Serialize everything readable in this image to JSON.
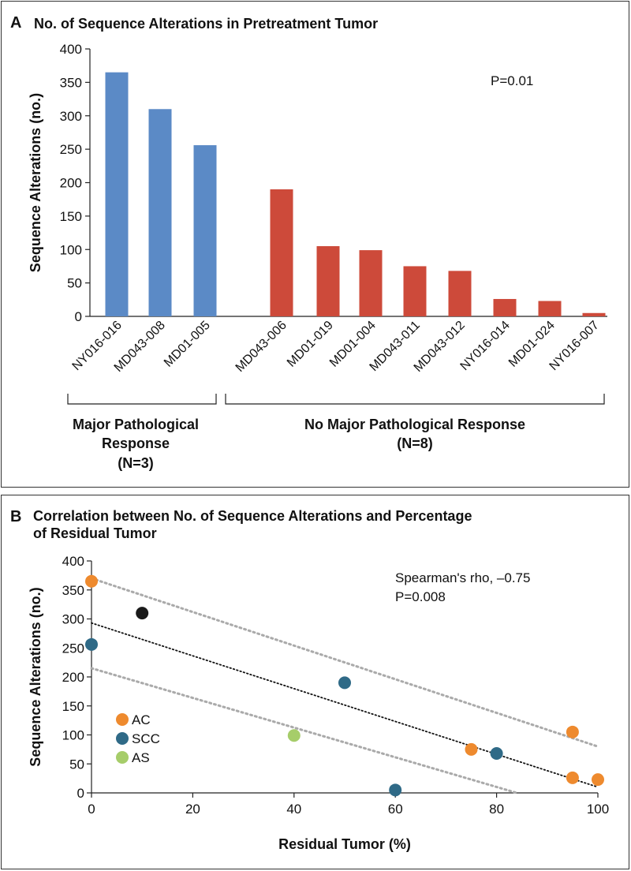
{
  "panel_a": {
    "letter": "A",
    "title": "No. of Sequence Alterations in Pretreatment Tumor",
    "p_value": "P=0.01",
    "groups": [
      {
        "label_lines": [
          "Major Pathological",
          "Response",
          "(N=3)"
        ]
      },
      {
        "label_lines": [
          "No Major Pathological Response",
          "(N=8)"
        ]
      }
    ]
  },
  "panel_b": {
    "letter": "B",
    "title_lines": [
      "Correlation between No. of  Sequence Alterations and Percentage",
      "of Residual Tumor"
    ],
    "stats_lines": [
      "Spearman's rho, –0.75",
      "P=0.008"
    ]
  },
  "chart_data": [
    {
      "type": "bar",
      "title": "No. of Sequence Alterations in Pretreatment Tumor",
      "ylabel": "Sequence Alterations (no.)",
      "ylim": [
        0,
        400
      ],
      "yticks": [
        0,
        50,
        100,
        150,
        200,
        250,
        300,
        350,
        400
      ],
      "categories": [
        "NY016-016",
        "MD043-008",
        "MD01-005",
        "MD043-006",
        "MD01-019",
        "MD01-004",
        "MD043-011",
        "MD043-012",
        "NY016-014",
        "MD01-024",
        "NY016-007"
      ],
      "values": [
        365,
        310,
        256,
        190,
        105,
        99,
        75,
        68,
        26,
        23,
        5
      ],
      "group_colors": {
        "major": "#5b8ac6",
        "no_major": "#cd4a3a"
      },
      "group_of_category": [
        "major",
        "major",
        "major",
        "no_major",
        "no_major",
        "no_major",
        "no_major",
        "no_major",
        "no_major",
        "no_major",
        "no_major"
      ],
      "annotation": "P=0.01"
    },
    {
      "type": "scatter",
      "title": "Correlation between No. of  Sequence Alterations and Percentage of Residual Tumor",
      "xlabel": "Residual Tumor (%)",
      "ylabel": "Sequence Alterations (no.)",
      "xlim": [
        0,
        100
      ],
      "ylim": [
        0,
        400
      ],
      "xticks": [
        0,
        20,
        40,
        60,
        80,
        100
      ],
      "yticks": [
        0,
        50,
        100,
        150,
        200,
        250,
        300,
        350,
        400
      ],
      "legend": [
        {
          "name": "AC",
          "color": "#ee8a2e"
        },
        {
          "name": "SCC",
          "color": "#2f6a87"
        },
        {
          "name": "AS",
          "color": "#a6cd6a"
        }
      ],
      "points": [
        {
          "x": 0,
          "y": 365,
          "color": "#ee8a2e"
        },
        {
          "x": 10,
          "y": 310,
          "color": "#1a1a1a"
        },
        {
          "x": 0,
          "y": 256,
          "color": "#2f6a87"
        },
        {
          "x": 50,
          "y": 190,
          "color": "#2f6a87"
        },
        {
          "x": 95,
          "y": 105,
          "color": "#ee8a2e"
        },
        {
          "x": 40,
          "y": 99,
          "color": "#a6cd6a"
        },
        {
          "x": 75,
          "y": 75,
          "color": "#ee8a2e"
        },
        {
          "x": 80,
          "y": 68,
          "color": "#2f6a87"
        },
        {
          "x": 95,
          "y": 26,
          "color": "#ee8a2e"
        },
        {
          "x": 100,
          "y": 23,
          "color": "#ee8a2e"
        },
        {
          "x": 60,
          "y": 5,
          "color": "#2f6a87"
        }
      ],
      "fit_line": {
        "x": [
          0,
          100
        ],
        "y": [
          293,
          10
        ],
        "color": "#111111",
        "style": "dotted"
      },
      "confidence_bands": [
        {
          "x": [
            0,
            100
          ],
          "y": [
            370,
            80
          ],
          "color": "#aaaaaa",
          "style": "dotted"
        },
        {
          "x": [
            0,
            84
          ],
          "y": [
            215,
            0
          ],
          "color": "#aaaaaa",
          "style": "dotted"
        }
      ],
      "annotation": [
        "Spearman's rho, –0.75",
        "P=0.008"
      ]
    }
  ]
}
